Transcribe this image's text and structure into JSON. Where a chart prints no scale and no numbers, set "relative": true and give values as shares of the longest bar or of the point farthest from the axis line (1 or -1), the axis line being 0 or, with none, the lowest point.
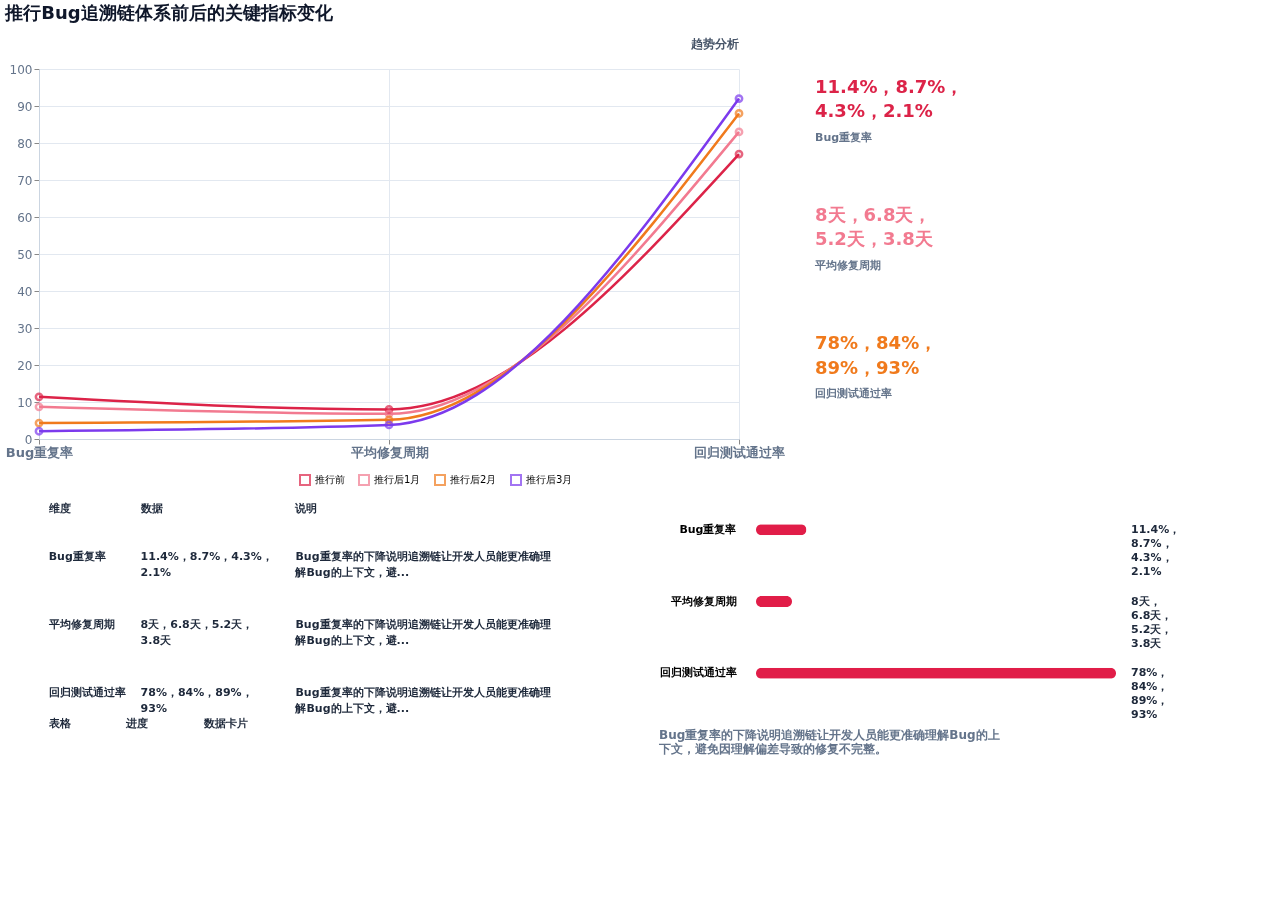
{
  "chart_data": [
    {
      "type": "line",
      "title": "推行Bug追溯链体系前后的关键指标变化",
      "annotations": [
        "趋势分析"
      ],
      "categories": [
        "Bug重复率",
        "平均修复周期",
        "回归测试通过率"
      ],
      "series": [
        {
          "name": "推行前",
          "color": "#dc2348",
          "values": [
            11.4,
            8,
            77
          ]
        },
        {
          "name": "推行后1月",
          "color": "#f27a90",
          "values": [
            8.7,
            6.8,
            83
          ]
        },
        {
          "name": "推行后2月",
          "color": "#f07a1c",
          "values": [
            4.3,
            5.2,
            88
          ]
        },
        {
          "name": "推行后3月",
          "color": "#7c3aed",
          "values": [
            2.1,
            3.8,
            92
          ]
        }
      ],
      "ylim": [
        0,
        100
      ],
      "yticks": [
        0,
        10,
        20,
        30,
        40,
        50,
        60,
        70,
        80,
        90,
        100
      ],
      "grid": true,
      "legend": "bottom",
      "marker": "circle",
      "line_style": "solid"
    },
    {
      "type": "other",
      "annotations": [
        "11.4%，8.7%，4.3%，2.1%",
        "Bug重复率",
        "8天，6.8天，5.2天，3.8天",
        "平均修复周期",
        "78%，84%，89%，93%",
        "回归测试通过率"
      ]
    },
    {
      "type": "other",
      "annotations": [
        "维度",
        "数据",
        "说明",
        "Bug重复率",
        "11.4%，8.7%，4.3%，2.1%",
        "Bug重复率的下降说明追溯链让开发人员能更准确理解Bug的上下文，避...",
        "平均修复周期",
        "8天，6.8天，5.2天，3.8天",
        "Bug重复率的下降说明追溯链让开发人员能更准确理解Bug的上下文，避...",
        "回归测试通过率",
        "78%，84%，89%，93%",
        "Bug重复率的下降说明追溯链让开发人员能更准确理解Bug的上下文，避...",
        "表格",
        "进度",
        "数据卡片"
      ]
    },
    {
      "type": "bar",
      "orientation": "horizontal",
      "relative": true,
      "color": "#e11d48",
      "categories": [
        "Bug重复率",
        "平均修复周期",
        "回归测试通过率"
      ],
      "values": [
        0.14,
        0.1,
        1
      ],
      "annotations": [
        "11.4%，8.7%，4.3%，2.1%",
        "8天，6.8天，5.2天，3.8天",
        "78%，84%，89%，93%",
        "Bug重复率的下降说明追溯链让开发人员能更准确理解Bug的上下文，避免因理解偏差导致的修复不完整。"
      ]
    }
  ]
}
